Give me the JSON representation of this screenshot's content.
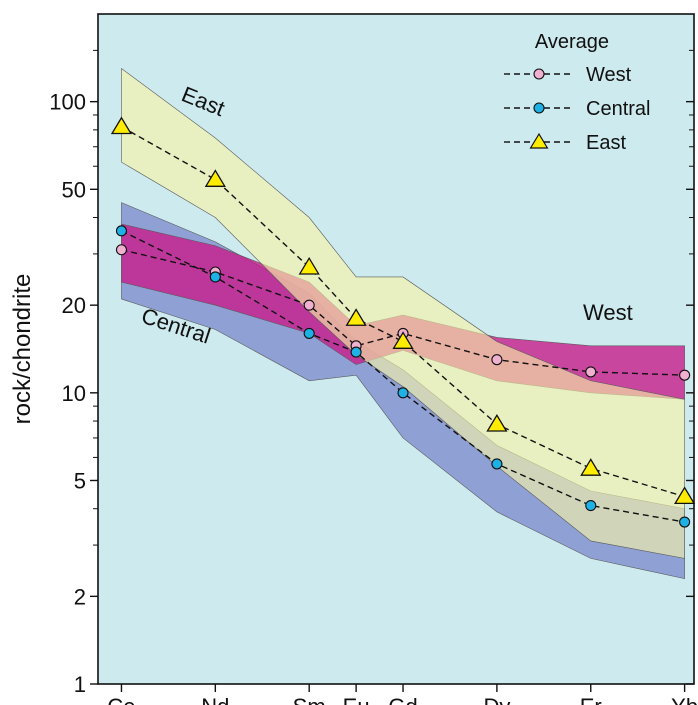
{
  "chart_data": {
    "type": "line",
    "yscale": "log",
    "ylabel": "rock/chondrite",
    "xlabel": "",
    "ylim": [
      1,
      200
    ],
    "yticks": [
      1,
      2,
      5,
      10,
      20,
      50,
      100
    ],
    "ytick_labels": [
      "1",
      "2",
      "5",
      "10",
      "20",
      "50",
      "100"
    ],
    "categories": [
      "Ce",
      "Nd",
      "Sm",
      "Eu",
      "Gd",
      "Dy",
      "Er",
      "Yb"
    ],
    "category_positions": [
      1,
      3,
      5,
      6,
      7,
      9,
      11,
      13
    ],
    "legend": {
      "title": "Average",
      "placement": "top-right"
    },
    "series": [
      {
        "name": "West",
        "marker": "circle",
        "marker_color": "#f0b0cf",
        "values": [
          31,
          26,
          20,
          14.5,
          16,
          13,
          11.8,
          11.5
        ]
      },
      {
        "name": "Central",
        "marker": "circle",
        "marker_color": "#1eb1e6",
        "values": [
          36,
          25,
          16,
          13.8,
          10,
          5.7,
          4.1,
          3.6
        ]
      },
      {
        "name": "East",
        "marker": "triangle",
        "marker_color": "#ffec00",
        "values": [
          82,
          54,
          27,
          18,
          15,
          7.8,
          5.5,
          4.4
        ]
      }
    ],
    "bands": [
      {
        "label": "Central",
        "color": "#8fa0d4",
        "x": [
          1,
          3,
          5,
          6,
          7,
          9,
          11,
          13
        ],
        "upper": [
          45,
          33,
          22,
          15,
          12,
          6.6,
          4.6,
          4.0
        ],
        "lower": [
          21,
          16.5,
          11,
          11.5,
          7,
          3.9,
          2.7,
          2.3
        ]
      },
      {
        "label": "West",
        "color": "#c81d8b",
        "x": [
          1,
          3,
          5,
          6,
          7,
          9,
          11,
          13
        ],
        "upper": [
          38,
          32,
          24,
          17,
          18.5,
          15.5,
          14.5,
          14.5
        ],
        "lower": [
          24,
          20,
          16,
          12.5,
          14,
          11,
          10,
          9.5
        ]
      },
      {
        "label": "East",
        "color": "#f9f4a6",
        "x": [
          1,
          3,
          5,
          6,
          7,
          9,
          11,
          13
        ],
        "upper": [
          130,
          75,
          40,
          25,
          25,
          15,
          11,
          9.5
        ],
        "lower": [
          62,
          40,
          19,
          13.5,
          10.5,
          5.6,
          3.1,
          2.7
        ]
      }
    ],
    "annotations": [
      "East",
      "West",
      "Central"
    ]
  }
}
